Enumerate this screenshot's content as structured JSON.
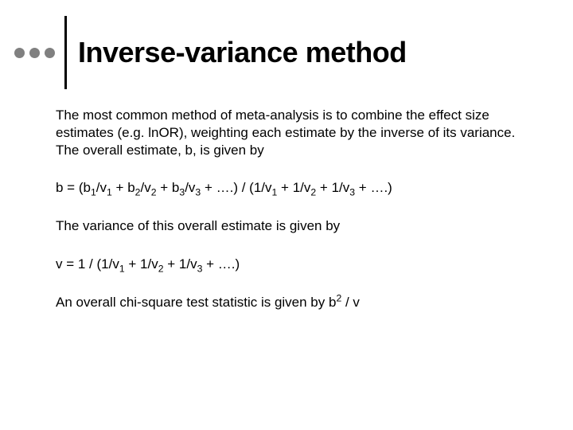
{
  "slide": {
    "title": "Inverse-variance method",
    "title_fontsize": 36,
    "title_fontweight": "bold",
    "title_color": "#000000",
    "body_fontsize": 17,
    "body_color": "#000000",
    "background_color": "#ffffff",
    "dot_color": "#808080",
    "dot_count": 3,
    "divider_color": "#000000",
    "paragraphs": {
      "p1": "The most common method of meta-analysis is to combine the effect size estimates (e.g. lnOR), weighting each estimate by the inverse of its variance. The overall estimate, b, is given by",
      "p3": "The variance of this overall estimate is given by"
    },
    "formulas": {
      "b_def": {
        "lhs": "b = (",
        "terms_num": [
          "b",
          "/v",
          " + b",
          "/v",
          " + b",
          "/v",
          "  + ….) / (1/v",
          " + 1/v",
          " + 1/v",
          " + ….)"
        ],
        "subs": [
          "1",
          "1",
          "2",
          "2",
          "3",
          "3",
          "1",
          "2",
          "3"
        ]
      },
      "v_def": {
        "lhs": "v = 1 / (1/v",
        "terms": [
          " + 1/v",
          " + 1/v",
          " + ….)"
        ],
        "subs": [
          "1",
          "2",
          "3"
        ]
      },
      "chi": {
        "prefix": "An overall chi-square test statistic is given by b",
        "sup": "2",
        "suffix": " / v"
      }
    }
  }
}
